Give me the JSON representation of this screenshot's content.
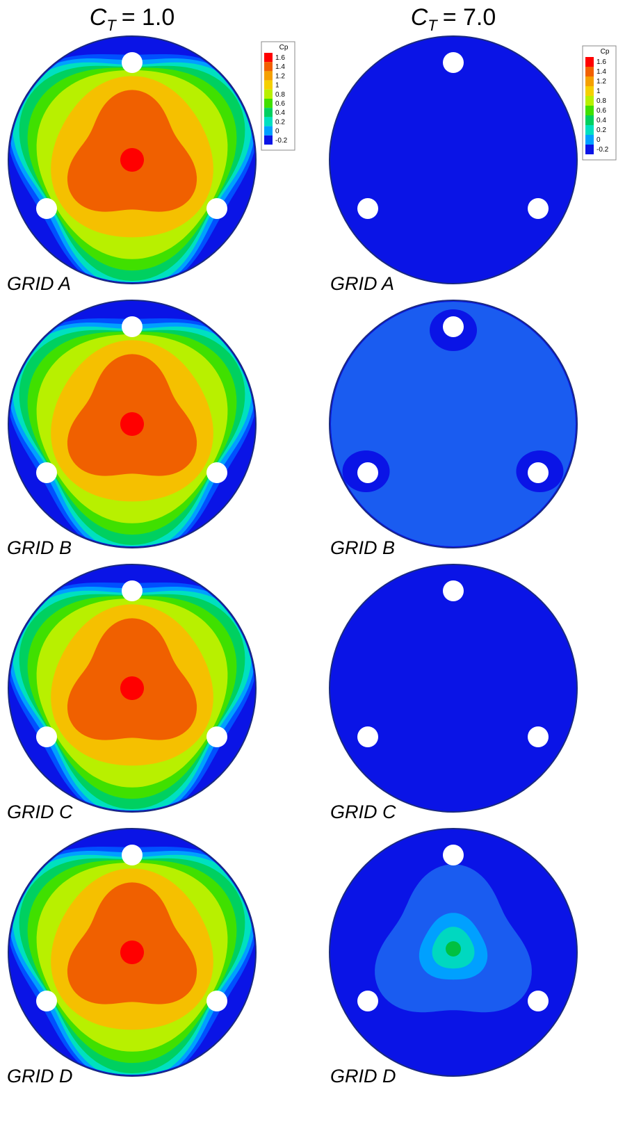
{
  "columns": [
    {
      "title": {
        "symbol": "C",
        "subscript": "T",
        "value": "= 1.0"
      },
      "legend": {
        "title": "Cp",
        "labels": [
          "1.6",
          "1.4",
          "1.2",
          "1",
          "0.8",
          "0.6",
          "0.4",
          "0.2",
          "0",
          "-0.2"
        ]
      },
      "panels": [
        {
          "label": "GRID A"
        },
        {
          "label": "GRID B"
        },
        {
          "label": "GRID C"
        },
        {
          "label": "GRID D"
        }
      ]
    },
    {
      "title": {
        "symbol": "C",
        "subscript": "T",
        "value": "= 7.0"
      },
      "legend": {
        "title": "Cp",
        "labels": [
          "1.6",
          "1.4",
          "1.2",
          "1",
          "0.8",
          "0.6",
          "0.4",
          "0.2",
          "0",
          "-0.2"
        ]
      },
      "panels": [
        {
          "label": "GRID A"
        },
        {
          "label": "GRID B"
        },
        {
          "label": "GRID C"
        },
        {
          "label": "GRID D"
        }
      ]
    }
  ]
}
